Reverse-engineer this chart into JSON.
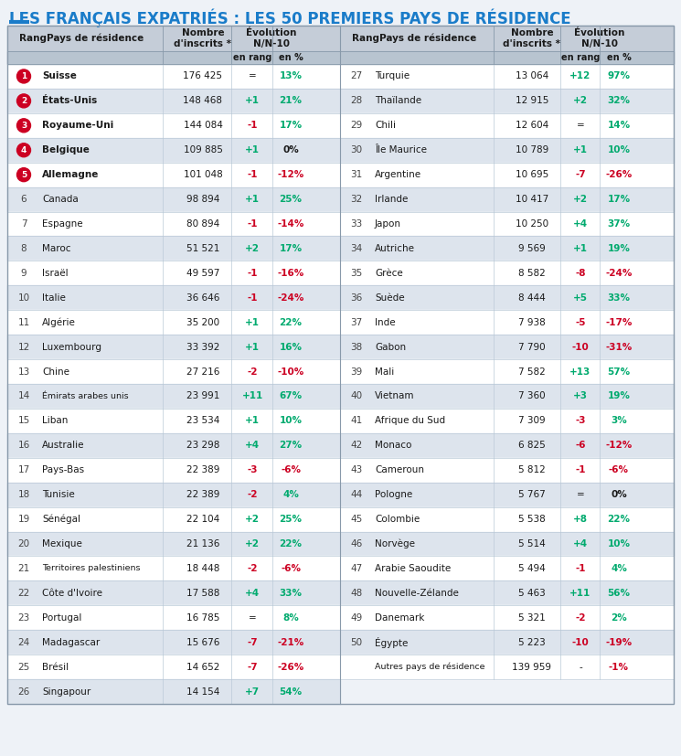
{
  "title": "LES FRANÇAIS EXPATRIÉS : LES 50 PREMIERS PAYS DE RÉSIDENCE",
  "title_color": "#1a7cc9",
  "background_color": "#eef2f7",
  "header_bg": "#c5cdd8",
  "row_bg_odd": "#ffffff",
  "row_bg_even": "#dde4ed",
  "left_data": [
    {
      "rang": 1,
      "pays": "Suisse",
      "nb": "176 425",
      "en_rang": "=",
      "en_pct": "13%",
      "rang_circle": true,
      "pct_color": "green",
      "rang_val_color": "black"
    },
    {
      "rang": 2,
      "pays": "États-Unis",
      "nb": "148 468",
      "en_rang": "+1",
      "en_pct": "21%",
      "rang_circle": true,
      "pct_color": "green",
      "rang_val_color": "green"
    },
    {
      "rang": 3,
      "pays": "Royaume-Uni",
      "nb": "144 084",
      "en_rang": "-1",
      "en_pct": "17%",
      "rang_circle": true,
      "pct_color": "green",
      "rang_val_color": "red"
    },
    {
      "rang": 4,
      "pays": "Belgique",
      "nb": "109 885",
      "en_rang": "+1",
      "en_pct": "0%",
      "rang_circle": true,
      "pct_color": "black",
      "rang_val_color": "green"
    },
    {
      "rang": 5,
      "pays": "Allemagne",
      "nb": "101 048",
      "en_rang": "-1",
      "en_pct": "-12%",
      "rang_circle": true,
      "pct_color": "red",
      "rang_val_color": "red"
    },
    {
      "rang": 6,
      "pays": "Canada",
      "nb": "98 894",
      "en_rang": "+1",
      "en_pct": "25%",
      "rang_circle": false,
      "pct_color": "green",
      "rang_val_color": "green"
    },
    {
      "rang": 7,
      "pays": "Espagne",
      "nb": "80 894",
      "en_rang": "-1",
      "en_pct": "-14%",
      "rang_circle": false,
      "pct_color": "red",
      "rang_val_color": "red"
    },
    {
      "rang": 8,
      "pays": "Maroc",
      "nb": "51 521",
      "en_rang": "+2",
      "en_pct": "17%",
      "rang_circle": false,
      "pct_color": "green",
      "rang_val_color": "green"
    },
    {
      "rang": 9,
      "pays": "Israël",
      "nb": "49 597",
      "en_rang": "-1",
      "en_pct": "-16%",
      "rang_circle": false,
      "pct_color": "red",
      "rang_val_color": "red"
    },
    {
      "rang": 10,
      "pays": "Italie",
      "nb": "36 646",
      "en_rang": "-1",
      "en_pct": "-24%",
      "rang_circle": false,
      "pct_color": "red",
      "rang_val_color": "red"
    },
    {
      "rang": 11,
      "pays": "Algérie",
      "nb": "35 200",
      "en_rang": "+1",
      "en_pct": "22%",
      "rang_circle": false,
      "pct_color": "green",
      "rang_val_color": "green"
    },
    {
      "rang": 12,
      "pays": "Luxembourg",
      "nb": "33 392",
      "en_rang": "+1",
      "en_pct": "16%",
      "rang_circle": false,
      "pct_color": "green",
      "rang_val_color": "green"
    },
    {
      "rang": 13,
      "pays": "Chine",
      "nb": "27 216",
      "en_rang": "-2",
      "en_pct": "-10%",
      "rang_circle": false,
      "pct_color": "red",
      "rang_val_color": "red"
    },
    {
      "rang": 14,
      "pays": "Émirats arabes unis",
      "nb": "23 991",
      "en_rang": "+11",
      "en_pct": "67%",
      "rang_circle": false,
      "pct_color": "green",
      "rang_val_color": "green"
    },
    {
      "rang": 15,
      "pays": "Liban",
      "nb": "23 534",
      "en_rang": "+1",
      "en_pct": "10%",
      "rang_circle": false,
      "pct_color": "green",
      "rang_val_color": "green"
    },
    {
      "rang": 16,
      "pays": "Australie",
      "nb": "23 298",
      "en_rang": "+4",
      "en_pct": "27%",
      "rang_circle": false,
      "pct_color": "green",
      "rang_val_color": "green"
    },
    {
      "rang": 17,
      "pays": "Pays-Bas",
      "nb": "22 389",
      "en_rang": "-3",
      "en_pct": "-6%",
      "rang_circle": false,
      "pct_color": "red",
      "rang_val_color": "red"
    },
    {
      "rang": 18,
      "pays": "Tunisie",
      "nb": "22 389",
      "en_rang": "-2",
      "en_pct": "4%",
      "rang_circle": false,
      "pct_color": "green",
      "rang_val_color": "red"
    },
    {
      "rang": 19,
      "pays": "Sénégal",
      "nb": "22 104",
      "en_rang": "+2",
      "en_pct": "25%",
      "rang_circle": false,
      "pct_color": "green",
      "rang_val_color": "green"
    },
    {
      "rang": 20,
      "pays": "Mexique",
      "nb": "21 136",
      "en_rang": "+2",
      "en_pct": "22%",
      "rang_circle": false,
      "pct_color": "green",
      "rang_val_color": "green"
    },
    {
      "rang": 21,
      "pays": "Territoires palestiniens",
      "nb": "18 448",
      "en_rang": "-2",
      "en_pct": "-6%",
      "rang_circle": false,
      "pct_color": "red",
      "rang_val_color": "red"
    },
    {
      "rang": 22,
      "pays": "Côte d'Ivoire",
      "nb": "17 588",
      "en_rang": "+4",
      "en_pct": "33%",
      "rang_circle": false,
      "pct_color": "green",
      "rang_val_color": "green"
    },
    {
      "rang": 23,
      "pays": "Portugal",
      "nb": "16 785",
      "en_rang": "=",
      "en_pct": "8%",
      "rang_circle": false,
      "pct_color": "green",
      "rang_val_color": "black"
    },
    {
      "rang": 24,
      "pays": "Madagascar",
      "nb": "15 676",
      "en_rang": "-7",
      "en_pct": "-21%",
      "rang_circle": false,
      "pct_color": "red",
      "rang_val_color": "red"
    },
    {
      "rang": 25,
      "pays": "Brésil",
      "nb": "14 652",
      "en_rang": "-7",
      "en_pct": "-26%",
      "rang_circle": false,
      "pct_color": "red",
      "rang_val_color": "red"
    },
    {
      "rang": 26,
      "pays": "Singapour",
      "nb": "14 154",
      "en_rang": "+7",
      "en_pct": "54%",
      "rang_circle": false,
      "pct_color": "green",
      "rang_val_color": "green"
    }
  ],
  "right_data": [
    {
      "rang": 27,
      "pays": "Turquie",
      "nb": "13 064",
      "en_rang": "+12",
      "en_pct": "97%",
      "pct_color": "green",
      "rang_val_color": "green"
    },
    {
      "rang": 28,
      "pays": "Thaïlande",
      "nb": "12 915",
      "en_rang": "+2",
      "en_pct": "32%",
      "pct_color": "green",
      "rang_val_color": "green"
    },
    {
      "rang": 29,
      "pays": "Chili",
      "nb": "12 604",
      "en_rang": "=",
      "en_pct": "14%",
      "pct_color": "green",
      "rang_val_color": "black"
    },
    {
      "rang": 30,
      "pays": "Île Maurice",
      "nb": "10 789",
      "en_rang": "+1",
      "en_pct": "10%",
      "pct_color": "green",
      "rang_val_color": "green"
    },
    {
      "rang": 31,
      "pays": "Argentine",
      "nb": "10 695",
      "en_rang": "-7",
      "en_pct": "-26%",
      "pct_color": "red",
      "rang_val_color": "red"
    },
    {
      "rang": 32,
      "pays": "Irlande",
      "nb": "10 417",
      "en_rang": "+2",
      "en_pct": "17%",
      "pct_color": "green",
      "rang_val_color": "green"
    },
    {
      "rang": 33,
      "pays": "Japon",
      "nb": "10 250",
      "en_rang": "+4",
      "en_pct": "37%",
      "pct_color": "green",
      "rang_val_color": "green"
    },
    {
      "rang": 34,
      "pays": "Autriche",
      "nb": "9 569",
      "en_rang": "+1",
      "en_pct": "19%",
      "pct_color": "green",
      "rang_val_color": "green"
    },
    {
      "rang": 35,
      "pays": "Grèce",
      "nb": "8 582",
      "en_rang": "-8",
      "en_pct": "-24%",
      "pct_color": "red",
      "rang_val_color": "red"
    },
    {
      "rang": 36,
      "pays": "Suède",
      "nb": "8 444",
      "en_rang": "+5",
      "en_pct": "33%",
      "pct_color": "green",
      "rang_val_color": "green"
    },
    {
      "rang": 37,
      "pays": "Inde",
      "nb": "7 938",
      "en_rang": "-5",
      "en_pct": "-17%",
      "pct_color": "red",
      "rang_val_color": "red"
    },
    {
      "rang": 38,
      "pays": "Gabon",
      "nb": "7 790",
      "en_rang": "-10",
      "en_pct": "-31%",
      "pct_color": "red",
      "rang_val_color": "red"
    },
    {
      "rang": 39,
      "pays": "Mali",
      "nb": "7 582",
      "en_rang": "+13",
      "en_pct": "57%",
      "pct_color": "green",
      "rang_val_color": "green"
    },
    {
      "rang": 40,
      "pays": "Vietnam",
      "nb": "7 360",
      "en_rang": "+3",
      "en_pct": "19%",
      "pct_color": "green",
      "rang_val_color": "green"
    },
    {
      "rang": 41,
      "pays": "Afrique du Sud",
      "nb": "7 309",
      "en_rang": "-3",
      "en_pct": "3%",
      "pct_color": "green",
      "rang_val_color": "red"
    },
    {
      "rang": 42,
      "pays": "Monaco",
      "nb": "6 825",
      "en_rang": "-6",
      "en_pct": "-12%",
      "pct_color": "red",
      "rang_val_color": "red"
    },
    {
      "rang": 43,
      "pays": "Cameroun",
      "nb": "5 812",
      "en_rang": "-1",
      "en_pct": "-6%",
      "pct_color": "red",
      "rang_val_color": "red"
    },
    {
      "rang": 44,
      "pays": "Pologne",
      "nb": "5 767",
      "en_rang": "=",
      "en_pct": "0%",
      "pct_color": "black",
      "rang_val_color": "black"
    },
    {
      "rang": 45,
      "pays": "Colombie",
      "nb": "5 538",
      "en_rang": "+8",
      "en_pct": "22%",
      "pct_color": "green",
      "rang_val_color": "green"
    },
    {
      "rang": 46,
      "pays": "Norvège",
      "nb": "5 514",
      "en_rang": "+4",
      "en_pct": "10%",
      "pct_color": "green",
      "rang_val_color": "green"
    },
    {
      "rang": 47,
      "pays": "Arabie Saoudite",
      "nb": "5 494",
      "en_rang": "-1",
      "en_pct": "4%",
      "pct_color": "green",
      "rang_val_color": "red"
    },
    {
      "rang": 48,
      "pays": "Nouvelle-Zélande",
      "nb": "5 463",
      "en_rang": "+11",
      "en_pct": "56%",
      "pct_color": "green",
      "rang_val_color": "green"
    },
    {
      "rang": 49,
      "pays": "Danemark",
      "nb": "5 321",
      "en_rang": "-2",
      "en_pct": "2%",
      "pct_color": "green",
      "rang_val_color": "red"
    },
    {
      "rang": 50,
      "pays": "Égypte",
      "nb": "5 223",
      "en_rang": "-10",
      "en_pct": "-19%",
      "pct_color": "red",
      "rang_val_color": "red"
    },
    {
      "rang": null,
      "pays": "Autres pays de résidence",
      "nb": "139 959",
      "en_rang": "-",
      "en_pct": "-1%",
      "pct_color": "red",
      "rang_val_color": "black"
    }
  ],
  "green_color": "#00aa6e",
  "red_color": "#cc0022",
  "circle_color": "#cc0022"
}
